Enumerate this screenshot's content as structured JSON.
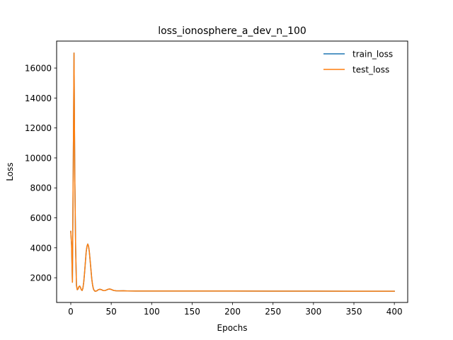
{
  "chart_data": {
    "type": "line",
    "title": "loss_ionosphere_a_dev_n_100",
    "xlabel": "Epochs",
    "ylabel": "Loss",
    "xlim": [
      -17.5,
      416.5
    ],
    "ylim": [
      350,
      17800
    ],
    "xticks": [
      0,
      50,
      100,
      150,
      200,
      250,
      300,
      350,
      400
    ],
    "yticks": [
      2000,
      4000,
      6000,
      8000,
      10000,
      12000,
      14000,
      16000
    ],
    "grid": false,
    "legend_position": "top-right",
    "series": [
      {
        "name": "train_loss",
        "color": "#1f77b4",
        "points": [
          [
            0,
            5100
          ],
          [
            1,
            4200
          ],
          [
            2,
            1700
          ],
          [
            3,
            9000
          ],
          [
            4,
            17000
          ],
          [
            5,
            8500
          ],
          [
            6,
            4000
          ],
          [
            7,
            1500
          ],
          [
            8,
            1200
          ],
          [
            9,
            1250
          ],
          [
            10,
            1400
          ],
          [
            11,
            1450
          ],
          [
            12,
            1350
          ],
          [
            13,
            1200
          ],
          [
            14,
            1150
          ],
          [
            15,
            1300
          ],
          [
            16,
            1700
          ],
          [
            17,
            2300
          ],
          [
            18,
            3000
          ],
          [
            19,
            3700
          ],
          [
            20,
            4100
          ],
          [
            21,
            4250
          ],
          [
            22,
            4100
          ],
          [
            23,
            3700
          ],
          [
            24,
            3100
          ],
          [
            25,
            2500
          ],
          [
            26,
            1900
          ],
          [
            27,
            1500
          ],
          [
            28,
            1250
          ],
          [
            29,
            1150
          ],
          [
            30,
            1100
          ],
          [
            32,
            1120
          ],
          [
            34,
            1200
          ],
          [
            36,
            1230
          ],
          [
            38,
            1200
          ],
          [
            40,
            1150
          ],
          [
            42,
            1140
          ],
          [
            44,
            1180
          ],
          [
            46,
            1230
          ],
          [
            48,
            1250
          ],
          [
            50,
            1220
          ],
          [
            52,
            1170
          ],
          [
            54,
            1140
          ],
          [
            56,
            1130
          ],
          [
            60,
            1125
          ],
          [
            65,
            1130
          ],
          [
            70,
            1120
          ],
          [
            80,
            1115
          ],
          [
            100,
            1110
          ],
          [
            150,
            1110
          ],
          [
            200,
            1110
          ],
          [
            250,
            1105
          ],
          [
            300,
            1105
          ],
          [
            350,
            1100
          ],
          [
            400,
            1100
          ]
        ]
      },
      {
        "name": "test_loss",
        "color": "#ff7f0e",
        "points": [
          [
            0,
            5100
          ],
          [
            1,
            4200
          ],
          [
            2,
            1700
          ],
          [
            3,
            9000
          ],
          [
            4,
            17000
          ],
          [
            5,
            8500
          ],
          [
            6,
            4000
          ],
          [
            7,
            1500
          ],
          [
            8,
            1200
          ],
          [
            9,
            1250
          ],
          [
            10,
            1400
          ],
          [
            11,
            1450
          ],
          [
            12,
            1350
          ],
          [
            13,
            1200
          ],
          [
            14,
            1150
          ],
          [
            15,
            1300
          ],
          [
            16,
            1700
          ],
          [
            17,
            2300
          ],
          [
            18,
            3000
          ],
          [
            19,
            3700
          ],
          [
            20,
            4100
          ],
          [
            21,
            4250
          ],
          [
            22,
            4100
          ],
          [
            23,
            3700
          ],
          [
            24,
            3100
          ],
          [
            25,
            2500
          ],
          [
            26,
            1900
          ],
          [
            27,
            1500
          ],
          [
            28,
            1250
          ],
          [
            29,
            1150
          ],
          [
            30,
            1100
          ],
          [
            32,
            1120
          ],
          [
            34,
            1200
          ],
          [
            36,
            1230
          ],
          [
            38,
            1200
          ],
          [
            40,
            1150
          ],
          [
            42,
            1140
          ],
          [
            44,
            1180
          ],
          [
            46,
            1230
          ],
          [
            48,
            1250
          ],
          [
            50,
            1220
          ],
          [
            52,
            1170
          ],
          [
            54,
            1140
          ],
          [
            56,
            1130
          ],
          [
            60,
            1125
          ],
          [
            65,
            1130
          ],
          [
            70,
            1120
          ],
          [
            80,
            1115
          ],
          [
            100,
            1110
          ],
          [
            150,
            1110
          ],
          [
            200,
            1110
          ],
          [
            250,
            1105
          ],
          [
            300,
            1105
          ],
          [
            350,
            1100
          ],
          [
            400,
            1100
          ]
        ]
      }
    ]
  }
}
